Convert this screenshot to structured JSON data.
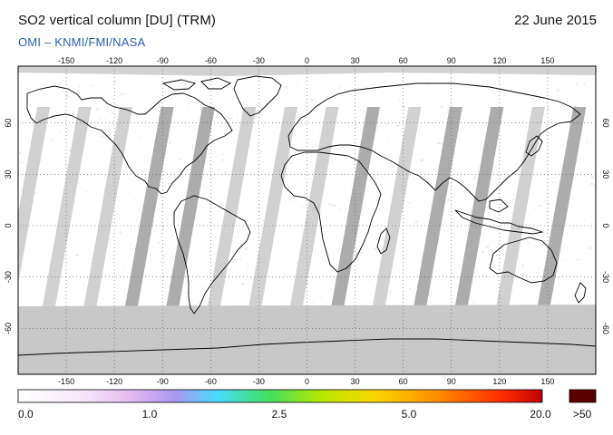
{
  "header": {
    "title": "SO2 vertical column [DU] (TRM)",
    "date": "22 June 2015",
    "provider": "OMI  –  KNMI/FMI/NASA"
  },
  "map": {
    "projection": "equirectangular",
    "lon_ticks": [
      -150,
      -120,
      -90,
      -60,
      -30,
      0,
      30,
      60,
      90,
      120,
      150
    ],
    "lat_ticks": [
      60,
      30,
      0,
      -30,
      -60
    ],
    "lon_labels": [
      "-150",
      "-120",
      "-90",
      "-60",
      "-30",
      "0",
      "30",
      "60",
      "90",
      "120",
      "150"
    ],
    "lat_labels": [
      "60",
      "30",
      "0",
      "-30",
      "-60"
    ],
    "background_color": "#ffffff",
    "no_data_color": "#c8c8c8",
    "polar_no_data_color": "#b4b4b4",
    "coastline_color": "#000000"
  },
  "colorbar": {
    "stops": [
      "#ffffff",
      "#e8c8f0",
      "#b0a0f0",
      "#40e0ff",
      "#40e040",
      "#f0e000",
      "#ff9000",
      "#ff2000",
      "#a00000"
    ],
    "tick_labels": [
      "0.0",
      "1.0",
      "2.5",
      "5.0",
      "20.0"
    ],
    "overflow_label": ">50",
    "overflow_color": "#5a0000"
  }
}
